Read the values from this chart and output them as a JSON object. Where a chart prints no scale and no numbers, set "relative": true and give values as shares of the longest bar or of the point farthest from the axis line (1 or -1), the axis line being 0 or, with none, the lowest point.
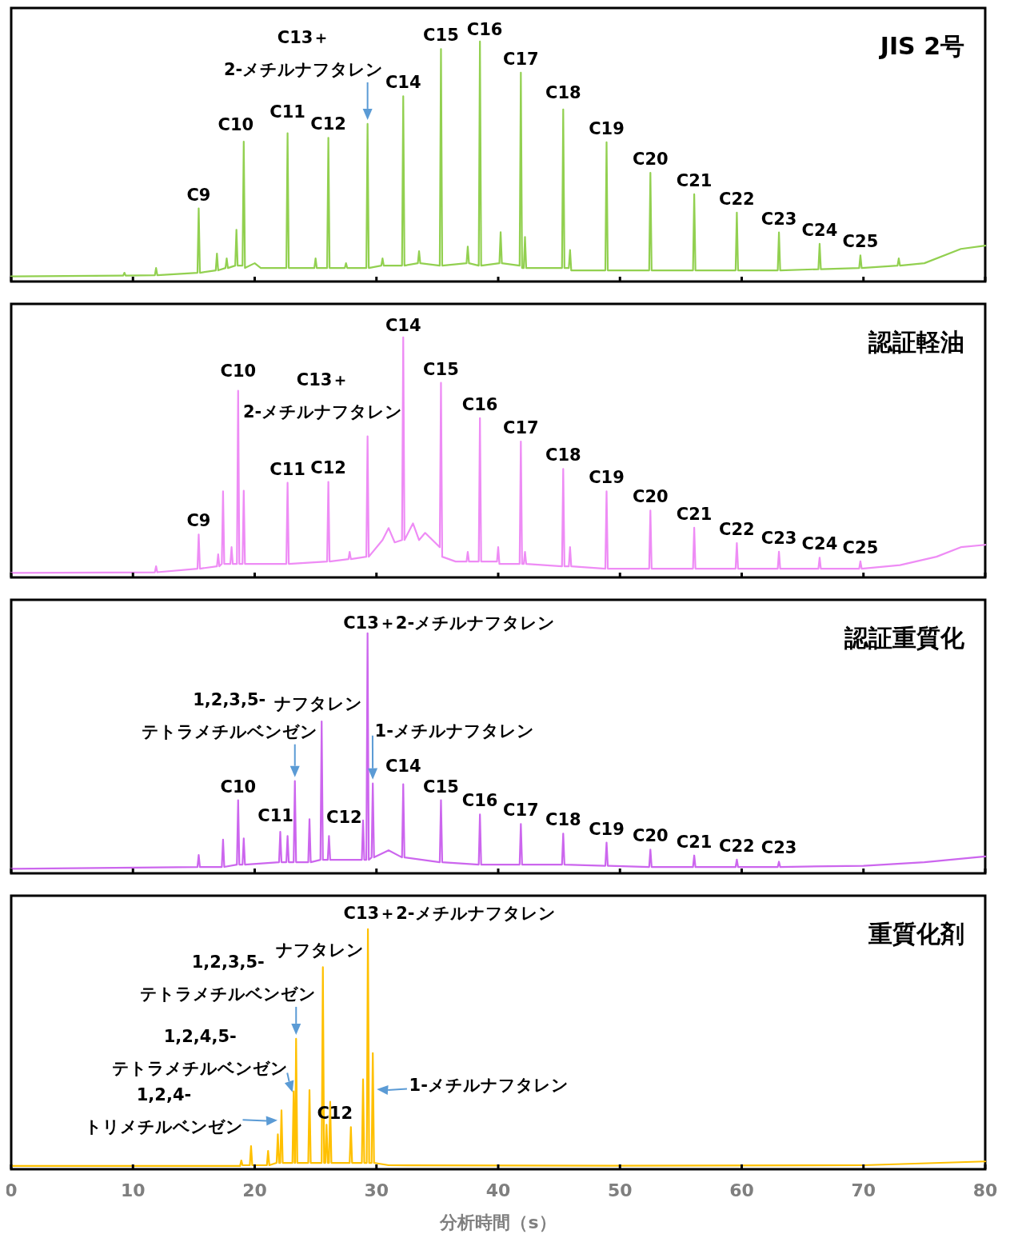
{
  "chart_data": [
    {
      "type": "line",
      "title": "JIS 2号",
      "relative": true,
      "color": "#92d050",
      "xlim": [
        0,
        80
      ],
      "xticks": [
        0,
        10,
        20,
        30,
        40,
        50,
        60,
        70,
        80
      ],
      "tick_labels": false,
      "x": [
        0,
        9,
        9.2,
        9.3,
        9.4,
        11.8,
        11.9,
        12,
        15.3,
        15.4,
        15.5,
        16.8,
        16.9,
        17,
        17.6,
        17.7,
        17.8,
        18.4,
        18.5,
        18.6,
        19,
        19.1,
        19.2,
        20,
        20.5,
        22.6,
        22.7,
        22.8,
        24.9,
        25,
        25.1,
        25.95,
        26.05,
        26.15,
        27.4,
        27.5,
        27.6,
        29.17,
        29.27,
        29.37,
        30.4,
        30.5,
        30.6,
        32.1,
        32.2,
        32.3,
        33.4,
        33.5,
        33.6,
        35.2,
        35.3,
        35.4,
        37.4,
        37.5,
        37.6,
        38.4,
        38.5,
        38.6,
        40.1,
        40.2,
        40.3,
        41.76,
        41.86,
        41.96,
        42.1,
        42.2,
        42.3,
        45.24,
        45.34,
        45.44,
        45.8,
        45.9,
        46,
        48.8,
        48.9,
        49,
        52.4,
        52.5,
        52.6,
        56,
        56.1,
        56.2,
        59.5,
        59.6,
        59.7,
        62.96,
        63.06,
        63.16,
        66.3,
        66.4,
        66.5,
        69.65,
        69.75,
        69.85,
        72.8,
        72.9,
        73,
        75,
        78,
        80
      ],
      "values": [
        0.015,
        0.018,
        0.018,
        0.03,
        0.018,
        0.02,
        0.05,
        0.02,
        0.03,
        0.3,
        0.03,
        0.04,
        0.11,
        0.04,
        0.05,
        0.09,
        0.05,
        0.06,
        0.21,
        0.06,
        0.06,
        0.58,
        0.05,
        0.07,
        0.05,
        0.05,
        0.615,
        0.05,
        0.05,
        0.09,
        0.05,
        0.05,
        0.596,
        0.05,
        0.05,
        0.07,
        0.05,
        0.05,
        0.654,
        0.05,
        0.06,
        0.09,
        0.06,
        0.06,
        0.77,
        0.06,
        0.07,
        0.12,
        0.07,
        0.06,
        0.968,
        0.06,
        0.07,
        0.14,
        0.07,
        0.06,
        1,
        0.06,
        0.07,
        0.2,
        0.07,
        0.06,
        0.869,
        0.05,
        0.05,
        0.18,
        0.05,
        0.05,
        0.715,
        0.05,
        0.05,
        0.125,
        0.04,
        0.04,
        0.577,
        0.04,
        0.04,
        0.449,
        0.04,
        0.04,
        0.359,
        0.04,
        0.04,
        0.282,
        0.04,
        0.04,
        0.199,
        0.04,
        0.045,
        0.151,
        0.045,
        0.05,
        0.103,
        0.05,
        0.06,
        0.09,
        0.06,
        0.07,
        0.13,
        0.144
      ],
      "annotations": [
        {
          "text": "C9",
          "x": 15.4,
          "y": 0.3
        },
        {
          "text": "C10",
          "x": 19.1,
          "y": 0.58
        },
        {
          "text": "C11",
          "x": 22.7,
          "y": 0.615
        },
        {
          "text": "C12",
          "x": 26.05,
          "y": 0.596
        },
        {
          "text": "C13＋\n2-メチルナフタレン",
          "x": 29.27,
          "y": 0.654
        },
        {
          "text": "C14",
          "x": 32.2,
          "y": 0.77
        },
        {
          "text": "C15",
          "x": 35.3,
          "y": 0.968
        },
        {
          "text": "C16",
          "x": 38.5,
          "y": 1
        },
        {
          "text": "C17",
          "x": 41.86,
          "y": 0.869
        },
        {
          "text": "C18",
          "x": 45.34,
          "y": 0.715
        },
        {
          "text": "C19",
          "x": 48.9,
          "y": 0.577
        },
        {
          "text": "C20",
          "x": 52.5,
          "y": 0.449
        },
        {
          "text": "C21",
          "x": 56.1,
          "y": 0.359
        },
        {
          "text": "C22",
          "x": 59.6,
          "y": 0.282
        },
        {
          "text": "C23",
          "x": 63.06,
          "y": 0.199
        },
        {
          "text": "C24",
          "x": 66.4,
          "y": 0.151
        },
        {
          "text": "C25",
          "x": 69.75,
          "y": 0.103
        }
      ]
    },
    {
      "type": "line",
      "title": "認証軽油",
      "relative": true,
      "color": "#ee8cf5",
      "xlim": [
        0,
        80
      ],
      "xticks": [
        0,
        10,
        20,
        30,
        40,
        50,
        60,
        70,
        80
      ],
      "tick_labels": false,
      "x": [
        0,
        11.8,
        11.9,
        12,
        15.3,
        15.4,
        15.5,
        16.9,
        17,
        17.1,
        17.3,
        17.4,
        17.5,
        18,
        18.1,
        18.2,
        18.54,
        18.64,
        18.74,
        19,
        19.1,
        19.2,
        22.6,
        22.7,
        22.8,
        25.95,
        26.05,
        26.15,
        27.7,
        27.8,
        27.9,
        29.17,
        29.27,
        29.37,
        30.5,
        31,
        31.5,
        32.1,
        32.2,
        32.3,
        33,
        33.5,
        34,
        35.2,
        35.3,
        35.4,
        36.5,
        37.4,
        37.5,
        37.6,
        38.4,
        38.5,
        38.6,
        39.9,
        40,
        40.1,
        41.76,
        41.86,
        41.96,
        42.1,
        42.2,
        42.3,
        45.24,
        45.34,
        45.44,
        45.8,
        45.9,
        46,
        48.8,
        48.9,
        49,
        52.4,
        52.5,
        52.6,
        56,
        56.1,
        56.2,
        59.5,
        59.6,
        59.7,
        62.96,
        63.06,
        63.16,
        66.3,
        66.4,
        66.5,
        69.65,
        69.75,
        69.85,
        73,
        76,
        78,
        80
      ],
      "values": [
        0.012,
        0.015,
        0.04,
        0.015,
        0.03,
        0.173,
        0.03,
        0.04,
        0.09,
        0.04,
        0.05,
        0.354,
        0.05,
        0.05,
        0.12,
        0.05,
        0.05,
        0.776,
        0.05,
        0.05,
        0.357,
        0.05,
        0.05,
        0.39,
        0.05,
        0.06,
        0.394,
        0.06,
        0.07,
        0.1,
        0.07,
        0.08,
        0.585,
        0.08,
        0.15,
        0.2,
        0.14,
        0.15,
        1,
        0.15,
        0.22,
        0.15,
        0.18,
        0.12,
        0.809,
        0.08,
        0.06,
        0.06,
        0.1,
        0.06,
        0.06,
        0.661,
        0.06,
        0.06,
        0.12,
        0.05,
        0.05,
        0.563,
        0.05,
        0.05,
        0.1,
        0.05,
        0.04,
        0.448,
        0.04,
        0.04,
        0.12,
        0.04,
        0.03,
        0.354,
        0.03,
        0.03,
        0.274,
        0.03,
        0.03,
        0.202,
        0.03,
        0.03,
        0.137,
        0.03,
        0.03,
        0.101,
        0.03,
        0.03,
        0.076,
        0.03,
        0.03,
        0.061,
        0.03,
        0.045,
        0.08,
        0.12,
        0.13
      ],
      "annotations": [
        {
          "text": "C9",
          "x": 15.4,
          "y": 0.173
        },
        {
          "text": "C10",
          "x": 18.64,
          "y": 0.776
        },
        {
          "text": "C11",
          "x": 22.7,
          "y": 0.39
        },
        {
          "text": "C12",
          "x": 26.05,
          "y": 0.394
        },
        {
          "text": "C13＋\n2-メチルナフタレン",
          "x": 29.27,
          "y": 0.585
        },
        {
          "text": "C14",
          "x": 32.2,
          "y": 1
        },
        {
          "text": "C15",
          "x": 35.3,
          "y": 0.809
        },
        {
          "text": "C16",
          "x": 38.5,
          "y": 0.661
        },
        {
          "text": "C17",
          "x": 41.86,
          "y": 0.563
        },
        {
          "text": "C18",
          "x": 45.34,
          "y": 0.448
        },
        {
          "text": "C19",
          "x": 48.9,
          "y": 0.354
        },
        {
          "text": "C20",
          "x": 52.5,
          "y": 0.274
        },
        {
          "text": "C21",
          "x": 56.1,
          "y": 0.202
        },
        {
          "text": "C22",
          "x": 59.6,
          "y": 0.137
        },
        {
          "text": "C23",
          "x": 63.06,
          "y": 0.101
        },
        {
          "text": "C24",
          "x": 66.4,
          "y": 0.076
        },
        {
          "text": "C25",
          "x": 69.75,
          "y": 0.061
        }
      ]
    },
    {
      "type": "line",
      "title": "認証重質化",
      "relative": true,
      "color": "#cc66ee",
      "xlim": [
        0,
        80
      ],
      "xticks": [
        0,
        10,
        20,
        30,
        40,
        50,
        60,
        70,
        80
      ],
      "tick_labels": false,
      "x": [
        0,
        15.3,
        15.4,
        15.5,
        17.3,
        17.4,
        17.5,
        18.54,
        18.64,
        18.74,
        19,
        19.1,
        19.2,
        22,
        22.1,
        22.2,
        22.6,
        22.7,
        22.8,
        23.2,
        23.3,
        23.4,
        24.4,
        24.5,
        24.6,
        25.4,
        25.5,
        25.6,
        26,
        26.1,
        26.2,
        28.8,
        28.9,
        29,
        29.17,
        29.27,
        29.37,
        29.6,
        29.7,
        29.8,
        31,
        32.1,
        32.2,
        32.3,
        35.2,
        35.3,
        35.4,
        38.4,
        38.5,
        38.6,
        41.76,
        41.86,
        41.96,
        45.24,
        45.34,
        45.44,
        48.8,
        48.9,
        49,
        52.4,
        52.5,
        52.6,
        56,
        56.1,
        56.2,
        59.5,
        59.6,
        59.7,
        62.96,
        63.06,
        63.16,
        70,
        75,
        80
      ],
      "values": [
        0.012,
        0.02,
        0.07,
        0.02,
        0.02,
        0.135,
        0.02,
        0.03,
        0.3,
        0.03,
        0.03,
        0.14,
        0.03,
        0.04,
        0.167,
        0.04,
        0.04,
        0.15,
        0.04,
        0.04,
        0.38,
        0.04,
        0.04,
        0.22,
        0.04,
        0.05,
        0.63,
        0.05,
        0.05,
        0.15,
        0.05,
        0.05,
        0.215,
        0.05,
        0.05,
        1,
        0.05,
        0.06,
        0.37,
        0.06,
        0.09,
        0.06,
        0.367,
        0.06,
        0.04,
        0.3,
        0.04,
        0.03,
        0.24,
        0.03,
        0.03,
        0.2,
        0.03,
        0.03,
        0.16,
        0.03,
        0.025,
        0.122,
        0.025,
        0.02,
        0.093,
        0.02,
        0.02,
        0.068,
        0.02,
        0.02,
        0.051,
        0.02,
        0.02,
        0.042,
        0.02,
        0.025,
        0.04,
        0.064
      ],
      "annotations": [
        {
          "text": "C10",
          "x": 18.64,
          "y": 0.3
        },
        {
          "text": "C11",
          "x": 22.7,
          "y": 0.15
        },
        {
          "text": "1,2,3,5-\nテトラメチルベンゼン",
          "x": 23.3,
          "y": 0.38
        },
        {
          "text": "ナフタレン",
          "x": 25.5,
          "y": 0.63
        },
        {
          "text": "C12",
          "x": 26.1,
          "y": 0.15
        },
        {
          "text": "C13＋2-メチルナフタレン",
          "x": 29.27,
          "y": 1
        },
        {
          "text": "1-メチルナフタレン",
          "x": 29.7,
          "y": 0.37
        },
        {
          "text": "C14",
          "x": 32.2,
          "y": 0.367
        },
        {
          "text": "C15",
          "x": 35.3,
          "y": 0.3
        },
        {
          "text": "C16",
          "x": 38.5,
          "y": 0.24
        },
        {
          "text": "C17",
          "x": 41.86,
          "y": 0.2
        },
        {
          "text": "C18",
          "x": 45.34,
          "y": 0.16
        },
        {
          "text": "C19",
          "x": 48.9,
          "y": 0.122
        },
        {
          "text": "C20",
          "x": 52.5,
          "y": 0.093
        },
        {
          "text": "C21",
          "x": 56.1,
          "y": 0.068
        },
        {
          "text": "C22",
          "x": 59.6,
          "y": 0.051
        },
        {
          "text": "C23",
          "x": 63.06,
          "y": 0.042
        }
      ]
    },
    {
      "type": "line",
      "title": "重質化剤",
      "relative": true,
      "color": "#ffc000",
      "xlim": [
        0,
        80
      ],
      "xticks": [
        0,
        10,
        20,
        30,
        40,
        50,
        60,
        70,
        80
      ],
      "tick_labels": "x",
      "xlabel": "分析時間（s）",
      "x": [
        0,
        18.8,
        18.9,
        19,
        19.6,
        19.7,
        19.8,
        21,
        21.1,
        21.2,
        21.8,
        21.9,
        22,
        22.1,
        22.2,
        22.3,
        23.1,
        23.2,
        23.28,
        23.32,
        23.4,
        23.5,
        24.4,
        24.5,
        24.6,
        25.5,
        25.6,
        25.7,
        25.8,
        25.9,
        26,
        26.1,
        26.2,
        26.3,
        27.8,
        27.9,
        28,
        28.8,
        28.9,
        29,
        29.2,
        29.3,
        29.4,
        29.6,
        29.7,
        29.8,
        31,
        50,
        70,
        80
      ],
      "values": [
        0.007,
        0.007,
        0.03,
        0.01,
        0.01,
        0.09,
        0.01,
        0.01,
        0.07,
        0.01,
        0.02,
        0.14,
        0.02,
        0.02,
        0.24,
        0.02,
        0.02,
        0.32,
        0.02,
        0.02,
        0.54,
        0.02,
        0.02,
        0.325,
        0.02,
        0.02,
        0.84,
        0.02,
        0.02,
        0.18,
        0.02,
        0.02,
        0.276,
        0.02,
        0.02,
        0.17,
        0.02,
        0.02,
        0.37,
        0.02,
        0.02,
        1,
        0.02,
        0.02,
        0.48,
        0.02,
        0.01,
        0.008,
        0.01,
        0.026
      ],
      "annotations": [
        {
          "text": "1,2,4-\nトリメチルベンゼン",
          "x": 22.2,
          "y": 0.2
        },
        {
          "text": "1,2,4,5-\nテトラメチルベンゼン",
          "x": 23.2,
          "y": 0.3
        },
        {
          "text": "1,2,3,5-\nテトラメチルベンゼン",
          "x": 23.4,
          "y": 0.54
        },
        {
          "text": "ナフタレン",
          "x": 25.6,
          "y": 0.84
        },
        {
          "text": "C12",
          "x": 27.9,
          "y": 0.17
        },
        {
          "text": "C13＋2-メチルナフタレン",
          "x": 29.3,
          "y": 1
        },
        {
          "text": "1-メチルナフタレン",
          "x": 29.7,
          "y": 0.33
        }
      ]
    }
  ]
}
